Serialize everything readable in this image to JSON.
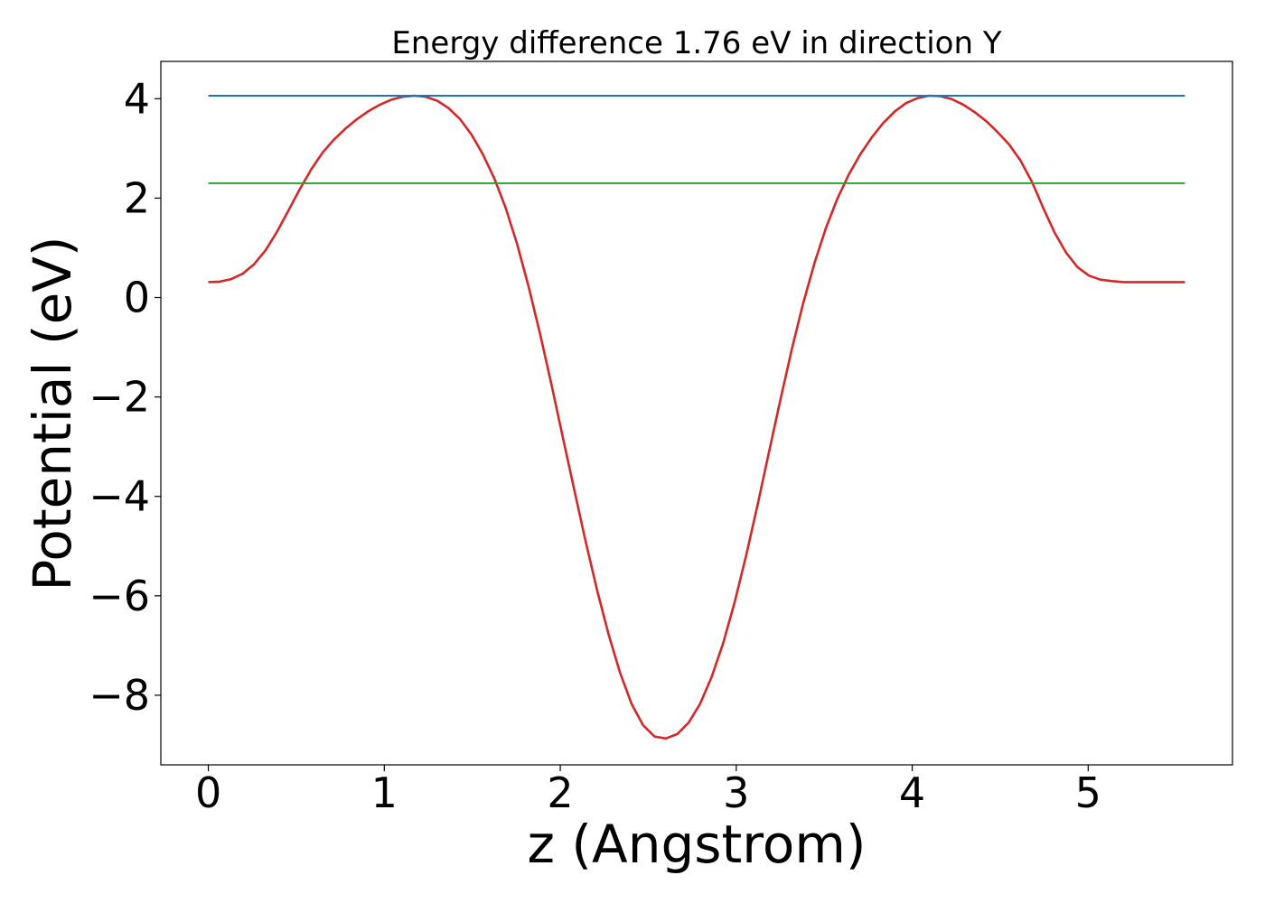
{
  "chart_data": {
    "type": "line",
    "title": "Energy difference 1.76 eV in direction Y",
    "xlabel": "z (Angstrom)",
    "ylabel": "Potential (eV)",
    "xlim": [
      -0.27,
      5.82
    ],
    "ylim": [
      -9.4,
      4.75
    ],
    "xticks": [
      0,
      1,
      2,
      3,
      4,
      5
    ],
    "yticks": [
      4,
      2,
      0,
      -2,
      -4,
      -6,
      -8
    ],
    "xtick_labels": [
      "0",
      "1",
      "2",
      "3",
      "4",
      "5"
    ],
    "ytick_labels": [
      "4",
      "2",
      "0",
      "−2",
      "−4",
      "−6",
      "−8"
    ],
    "grid": false,
    "series": [
      {
        "color": "#d62728",
        "x": [
          0.0,
          0.065,
          0.13,
          0.195,
          0.26,
          0.325,
          0.39,
          0.455,
          0.52,
          0.585,
          0.65,
          0.715,
          0.78,
          0.845,
          0.91,
          0.975,
          1.04,
          1.105,
          1.17,
          1.235,
          1.3,
          1.365,
          1.43,
          1.495,
          1.56,
          1.625,
          1.69,
          1.755,
          1.82,
          1.885,
          1.95,
          2.015,
          2.08,
          2.145,
          2.21,
          2.275,
          2.34,
          2.405,
          2.47,
          2.535,
          2.6,
          2.665,
          2.73,
          2.795,
          2.86,
          2.925,
          2.99,
          3.055,
          3.12,
          3.185,
          3.25,
          3.315,
          3.38,
          3.445,
          3.51,
          3.575,
          3.64,
          3.705,
          3.77,
          3.835,
          3.9,
          3.965,
          4.03,
          4.095,
          4.16,
          4.225,
          4.29,
          4.355,
          4.42,
          4.485,
          4.55,
          4.615,
          4.68,
          4.745,
          4.81,
          4.875,
          4.94,
          5.005,
          5.07,
          5.135,
          5.2,
          5.265,
          5.33,
          5.395,
          5.46,
          5.525,
          5.55
        ],
        "y": [
          0.31,
          0.32,
          0.37,
          0.48,
          0.67,
          0.95,
          1.32,
          1.75,
          2.18,
          2.58,
          2.92,
          3.18,
          3.4,
          3.59,
          3.75,
          3.88,
          3.98,
          4.04,
          4.06,
          4.04,
          3.96,
          3.81,
          3.59,
          3.28,
          2.88,
          2.4,
          1.8,
          1.07,
          0.22,
          -0.73,
          -1.75,
          -2.82,
          -3.88,
          -4.92,
          -5.9,
          -6.78,
          -7.55,
          -8.17,
          -8.6,
          -8.83,
          -8.87,
          -8.78,
          -8.55,
          -8.17,
          -7.63,
          -6.96,
          -6.14,
          -5.21,
          -4.19,
          -3.13,
          -2.07,
          -1.05,
          -0.12,
          0.7,
          1.4,
          1.99,
          2.48,
          2.88,
          3.22,
          3.51,
          3.74,
          3.91,
          4.01,
          4.06,
          4.05,
          3.99,
          3.88,
          3.73,
          3.55,
          3.33,
          3.08,
          2.76,
          2.33,
          1.8,
          1.3,
          0.9,
          0.61,
          0.44,
          0.36,
          0.33,
          0.31,
          0.31,
          0.31,
          0.31,
          0.31,
          0.31,
          0.31
        ]
      },
      {
        "color": "#1f77b4",
        "x": [
          0.0,
          5.55
        ],
        "y": [
          4.06,
          4.06
        ]
      },
      {
        "color": "#2ca02c",
        "x": [
          0.0,
          5.55
        ],
        "y": [
          2.3,
          2.3
        ]
      }
    ]
  }
}
